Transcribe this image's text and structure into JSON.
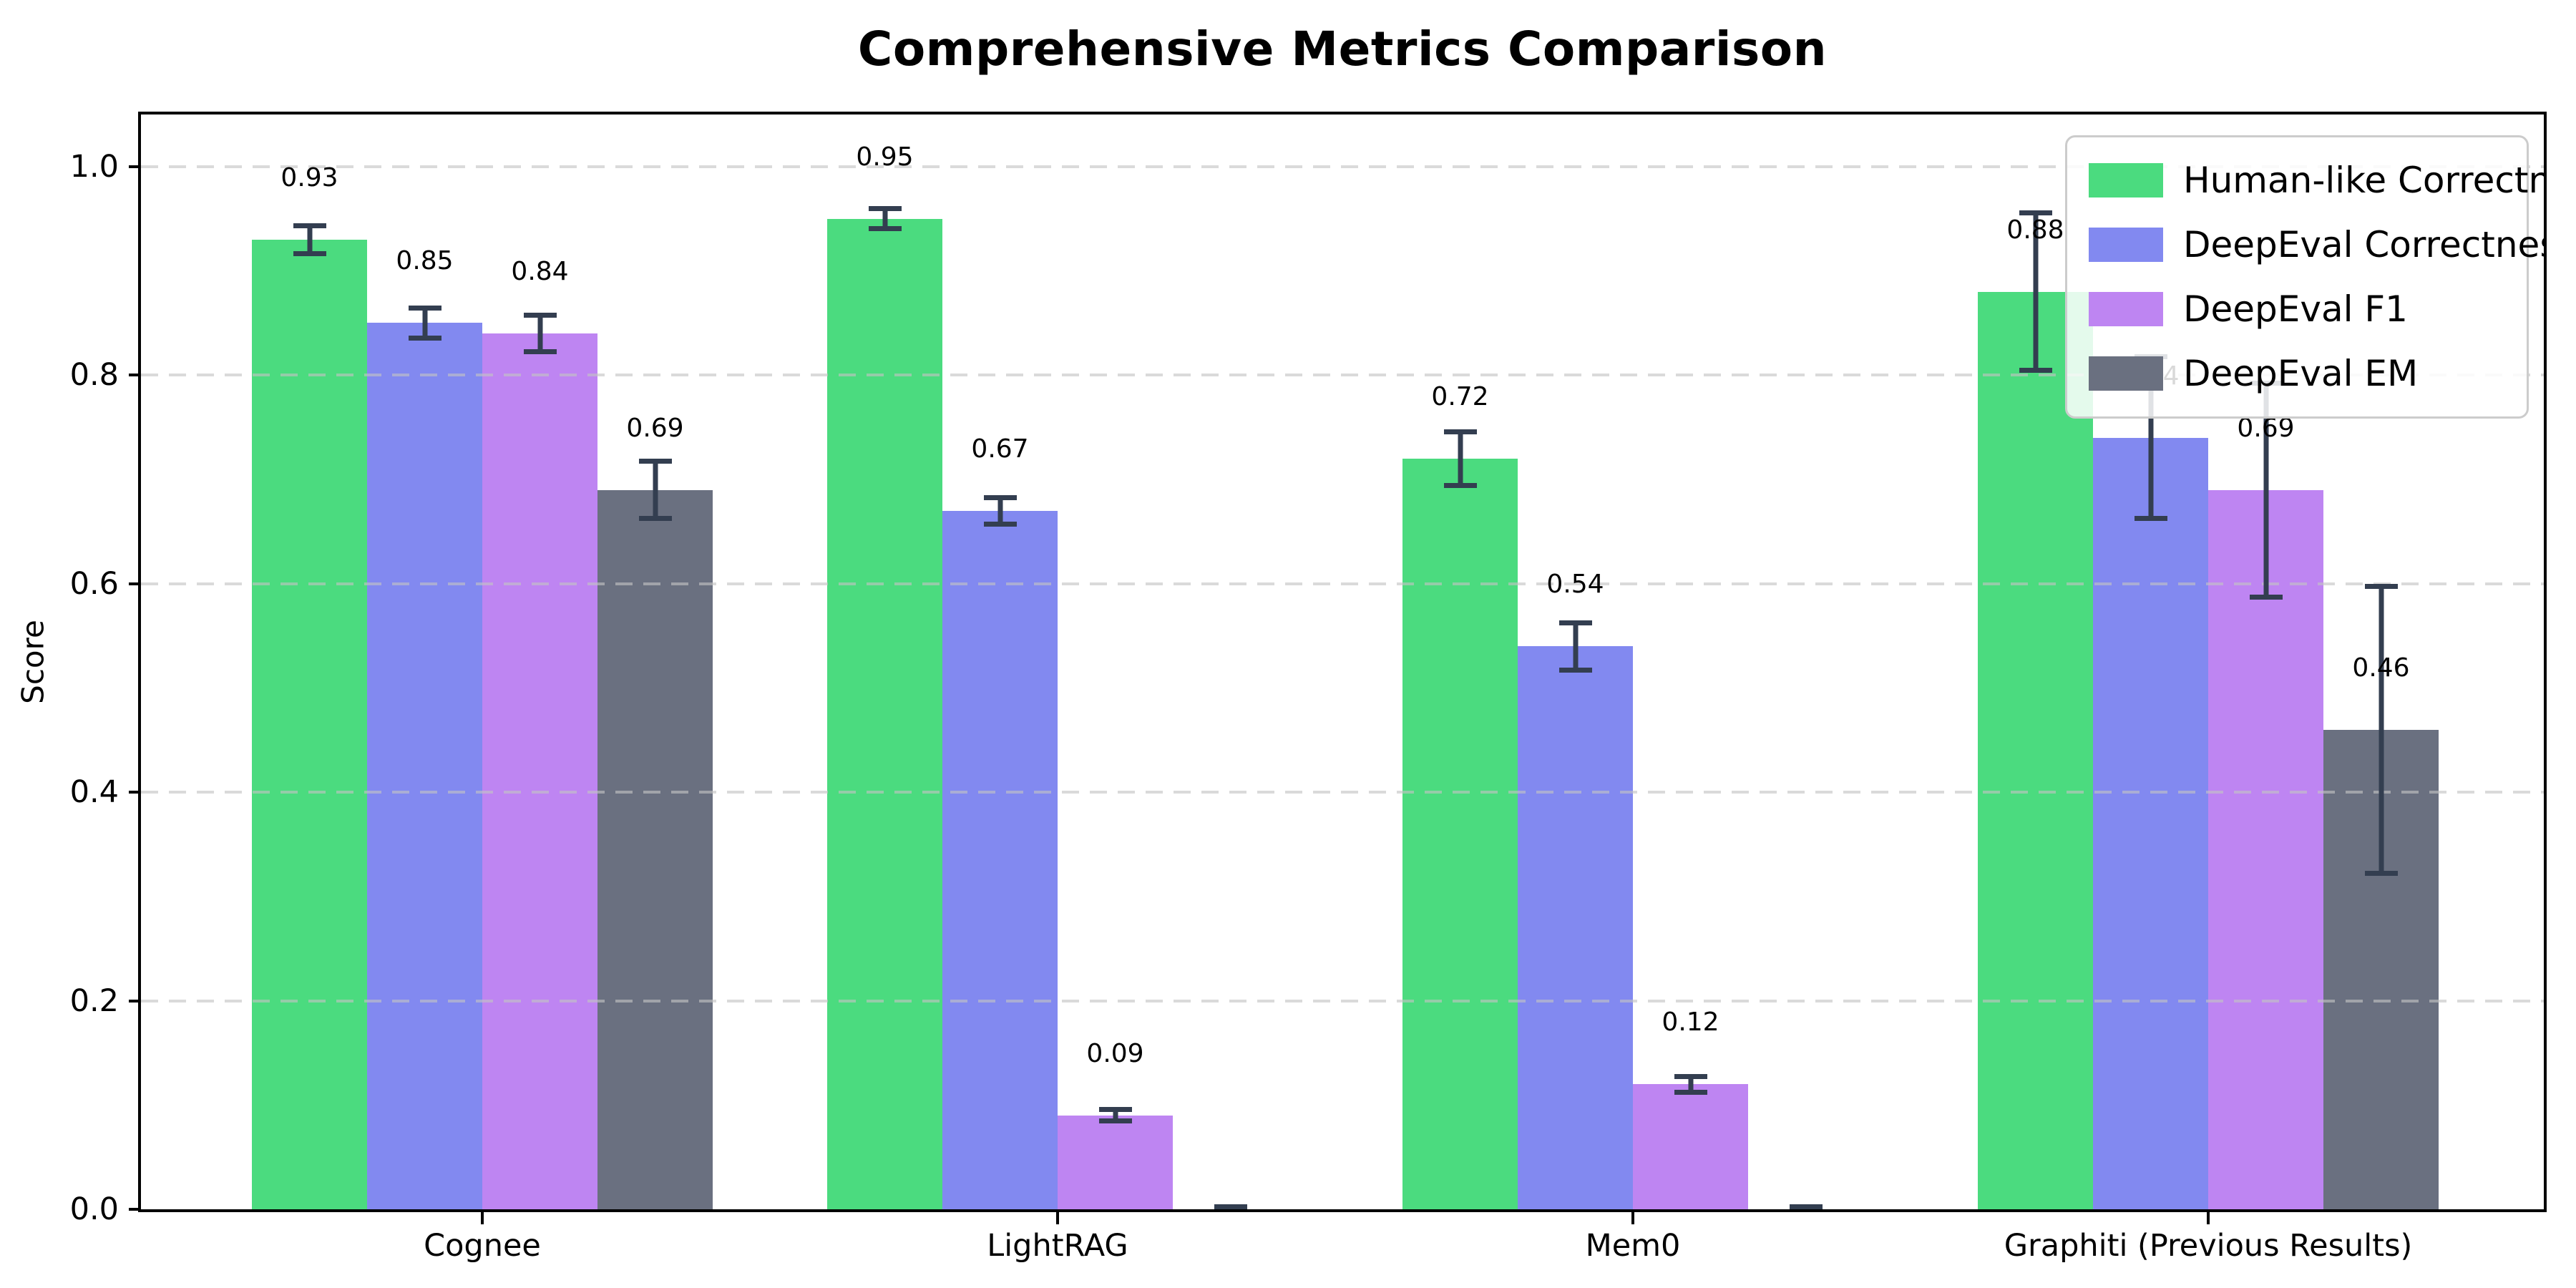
{
  "chart_data": {
    "type": "bar",
    "title": "Comprehensive Metrics Comparison",
    "ylabel": "Score",
    "xlabel": "",
    "categories": [
      "Cognee",
      "LightRAG",
      "Mem0",
      "Graphiti (Previous Results)"
    ],
    "series": [
      {
        "name": "Human-like Correctness",
        "color": "#4bdb7f",
        "values": [
          0.93,
          0.95,
          0.72,
          0.88
        ],
        "errors": [
          0.016,
          0.012,
          0.028,
          0.078
        ],
        "labels": [
          "0.93",
          "0.95",
          "0.72",
          "0.88"
        ]
      },
      {
        "name": "DeepEval Correctness",
        "color": "#8289f0",
        "values": [
          0.85,
          0.67,
          0.54,
          0.74
        ],
        "errors": [
          0.017,
          0.015,
          0.025,
          0.08
        ],
        "labels": [
          "0.85",
          "0.67",
          "0.54",
          "0.74"
        ]
      },
      {
        "name": "DeepEval F1",
        "color": "#be85f2",
        "values": [
          0.84,
          0.09,
          0.12,
          0.69
        ],
        "errors": [
          0.02,
          0.008,
          0.01,
          0.105
        ],
        "labels": [
          "0.84",
          "0.09",
          "0.12",
          "0.69"
        ]
      },
      {
        "name": "DeepEval EM",
        "color": "#6a7080",
        "values": [
          0.69,
          0.0,
          0.0,
          0.46
        ],
        "errors": [
          0.03,
          0.005,
          0.005,
          0.14
        ],
        "labels": [
          "0.69",
          null,
          null,
          "0.46"
        ]
      }
    ],
    "ylim": [
      0,
      1.05
    ],
    "yticks": [
      0.0,
      0.2,
      0.4,
      0.6,
      0.8,
      1.0
    ],
    "ytick_labels": [
      "0.0",
      "0.2",
      "0.4",
      "0.6",
      "0.8",
      "1.0"
    ],
    "grid": "horizontal-dashed",
    "legend_position": "upper right",
    "error_bar_color": "#333e50",
    "background_color": "#ffffff",
    "axis_color": "#000000"
  }
}
